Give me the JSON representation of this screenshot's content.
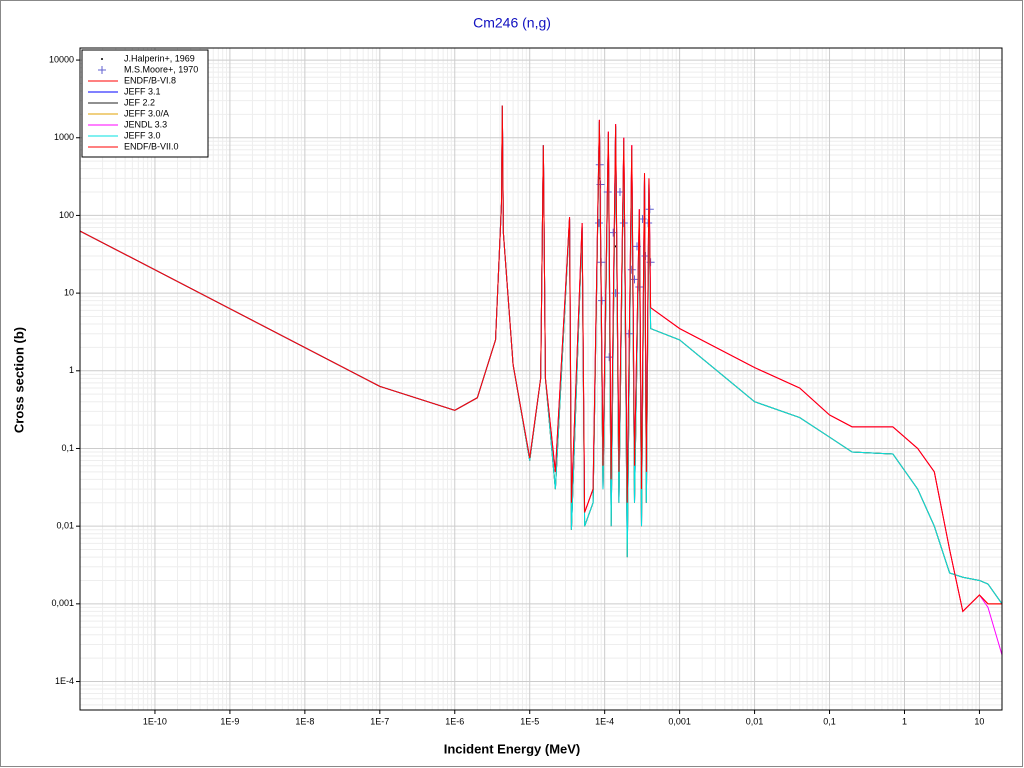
{
  "chart_data": {
    "type": "line",
    "title": "Cm246 (n,g)",
    "x_label": "Incident Energy (MeV)",
    "y_label": "Cross section (b)",
    "x_scale": "log",
    "y_scale": "log",
    "grid": true,
    "legend": "upper left",
    "xlim": [
      1e-11,
      20
    ],
    "ylim": [
      4.3e-05,
      14300
    ],
    "xticks": [
      {
        "value": 1e-10,
        "label": "1E-10"
      },
      {
        "value": 1e-09,
        "label": "1E-9"
      },
      {
        "value": 1e-08,
        "label": "1E-8"
      },
      {
        "value": 1e-07,
        "label": "1E-7"
      },
      {
        "value": 1e-06,
        "label": "1E-6"
      },
      {
        "value": 1e-05,
        "label": "1E-5"
      },
      {
        "value": 0.0001,
        "label": "1E-4"
      },
      {
        "value": 0.001,
        "label": "0,001"
      },
      {
        "value": 0.01,
        "label": "0,01"
      },
      {
        "value": 0.1,
        "label": "0,1"
      },
      1,
      10
    ],
    "yticks": [
      {
        "value": 0.0001,
        "label": "1E-4"
      },
      {
        "value": 0.001,
        "label": "0,001"
      },
      {
        "value": 0.01,
        "label": "0,01"
      },
      {
        "value": 0.1,
        "label": "0,1"
      },
      1,
      10,
      100,
      1000,
      10000
    ],
    "x": [
      1e-11,
      1e-09,
      1e-07,
      1e-06,
      2e-06,
      3.5e-06,
      4.2e-06,
      4.31e-06,
      4.45e-06,
      6e-06,
      1e-05,
      1.4e-05,
      1.52e-05,
      1.62e-05,
      2.2e-05,
      3.4e-05,
      3.6e-05,
      5e-05,
      5.4e-05,
      7e-05,
      8.5e-05,
      9.5e-05,
      0.000112,
      0.000122,
      0.00014,
      0.000155,
      0.00018,
      0.0002,
      0.00023,
      0.00025,
      0.00029,
      0.00031,
      0.00034,
      0.00036,
      0.00039,
      0.00041,
      0.001,
      0.01,
      0.04,
      0.1,
      0.2,
      0.7,
      1.5,
      2.5,
      4,
      6,
      10,
      13,
      20
    ],
    "series": [
      {
        "name": "J.Halperin+, 1969",
        "color": "#000000",
        "marker": "dot",
        "x": [
          8.6e-05,
          0.00014
        ],
        "values": [
          300,
          40
        ]
      },
      {
        "name": "M.S.Moore+, 1970",
        "color": "#6060d0",
        "marker": "plus",
        "x": [
          8.4e-05,
          8.6e-05,
          8.8e-05,
          9e-05,
          9.2e-05,
          0.00011,
          0.000115,
          0.00013,
          0.00014,
          0.00016,
          0.00018,
          0.00021,
          0.00023,
          0.00025,
          0.00027,
          0.00029,
          0.00032,
          0.00035,
          0.00038,
          0.0004,
          0.00041
        ],
        "values": [
          80,
          450,
          250,
          25,
          8,
          200,
          1.5,
          60,
          10,
          200,
          80,
          3,
          20,
          15,
          40,
          12,
          90,
          30,
          80,
          120,
          25
        ]
      },
      {
        "name": "ENDF/B-VI.8",
        "color": "#ff0000",
        "values": [
          63,
          6.3,
          0.63,
          0.31,
          0.45,
          2.5,
          140,
          2600,
          60,
          1.2,
          0.075,
          0.8,
          800,
          0.8,
          0.05,
          95,
          0.02,
          80,
          0.015,
          0.03,
          1700,
          0.06,
          1200,
          0.04,
          1500,
          0.05,
          1000,
          0.02,
          800,
          0.06,
          120,
          0.03,
          350,
          0.05,
          300,
          6.5,
          3.5,
          1.1,
          0.6,
          0.27,
          0.19,
          0.19,
          0.1,
          0.05,
          0.005,
          0.0008,
          0.0013,
          0.001,
          0.001
        ]
      },
      {
        "name": "JEFF 3.1",
        "color": "#0000ff",
        "values": [
          63,
          6.3,
          0.63,
          0.31,
          0.45,
          2.5,
          140,
          2600,
          60,
          1.2,
          0.07,
          0.8,
          800,
          0.8,
          0.03,
          90,
          0.009,
          70,
          0.01,
          0.02,
          1600,
          0.03,
          1100,
          0.01,
          1400,
          0.02,
          900,
          0.004,
          700,
          0.02,
          100,
          0.01,
          300,
          0.02,
          250,
          3.5,
          2.5,
          0.4,
          0.25,
          0.14,
          0.09,
          0.085,
          0.03,
          0.01,
          0.0025,
          0.0022,
          0.002,
          0.0018,
          0.001
        ]
      },
      {
        "name": "JEF 2.2",
        "color": "#202020",
        "values": [
          63,
          6.3,
          0.63,
          0.31,
          0.45,
          2.5,
          140,
          2600,
          60,
          1.2,
          0.07,
          0.8,
          800,
          0.8,
          0.03,
          90,
          0.009,
          70,
          0.01,
          0.02,
          1600,
          0.03,
          1100,
          0.01,
          1400,
          0.02,
          900,
          0.004,
          700,
          0.02,
          100,
          0.01,
          300,
          0.02,
          250,
          3.5,
          2.5,
          0.4,
          0.25,
          0.14,
          0.09,
          0.085,
          0.03,
          0.01,
          0.0025,
          0.0022,
          0.002,
          0.0018,
          0.001
        ]
      },
      {
        "name": "JEFF 3.0/A",
        "color": "#e0a000",
        "values": [
          63,
          6.3,
          0.63,
          0.31,
          0.45,
          2.5,
          140,
          2600,
          60,
          1.2,
          0.07,
          0.8,
          800,
          0.8,
          0.03,
          90,
          0.009,
          70,
          0.01,
          0.02,
          1600,
          0.03,
          1100,
          0.01,
          1400,
          0.02,
          900,
          0.004,
          700,
          0.02,
          100,
          0.01,
          300,
          0.02,
          250,
          3.5,
          2.5,
          0.4,
          0.25,
          0.14,
          0.09,
          0.085,
          0.03,
          0.01,
          0.0025,
          0.0022,
          0.002,
          0.0018,
          0.001
        ]
      },
      {
        "name": "JENDL 3.3",
        "color": "#ff00ff",
        "values": [
          63,
          6.3,
          0.63,
          0.31,
          0.45,
          2.5,
          140,
          2600,
          60,
          1.2,
          0.075,
          0.8,
          800,
          0.8,
          0.05,
          95,
          0.02,
          80,
          0.015,
          0.03,
          1700,
          0.06,
          1200,
          0.04,
          1500,
          0.05,
          1000,
          0.02,
          800,
          0.06,
          120,
          0.03,
          350,
          0.05,
          300,
          6.5,
          3.5,
          1.1,
          0.6,
          0.27,
          0.19,
          0.19,
          0.1,
          0.05,
          0.005,
          0.0008,
          0.0013,
          0.0009,
          0.00022
        ]
      },
      {
        "name": "JEFF 3.0",
        "color": "#00e0e0",
        "values": [
          63,
          6.3,
          0.63,
          0.31,
          0.45,
          2.5,
          140,
          2600,
          60,
          1.2,
          0.07,
          0.8,
          800,
          0.8,
          0.03,
          90,
          0.009,
          70,
          0.01,
          0.02,
          1600,
          0.03,
          1100,
          0.01,
          1400,
          0.02,
          900,
          0.004,
          700,
          0.02,
          100,
          0.01,
          300,
          0.02,
          250,
          3.5,
          2.5,
          0.4,
          0.25,
          0.14,
          0.09,
          0.085,
          0.03,
          0.01,
          0.0025,
          0.0022,
          0.002,
          0.0018,
          0.001
        ]
      },
      {
        "name": "ENDF/B-VII.0",
        "color": "#ff0000",
        "values": [
          63,
          6.3,
          0.63,
          0.31,
          0.45,
          2.5,
          140,
          2600,
          60,
          1.2,
          0.075,
          0.8,
          800,
          0.8,
          0.05,
          95,
          0.02,
          80,
          0.015,
          0.03,
          1700,
          0.06,
          1200,
          0.04,
          1500,
          0.05,
          1000,
          0.02,
          800,
          0.06,
          120,
          0.03,
          350,
          0.05,
          300,
          6.5,
          3.5,
          1.1,
          0.6,
          0.27,
          0.19,
          0.19,
          0.1,
          0.05,
          0.005,
          0.0008,
          0.0013,
          0.001,
          0.001
        ]
      }
    ]
  }
}
